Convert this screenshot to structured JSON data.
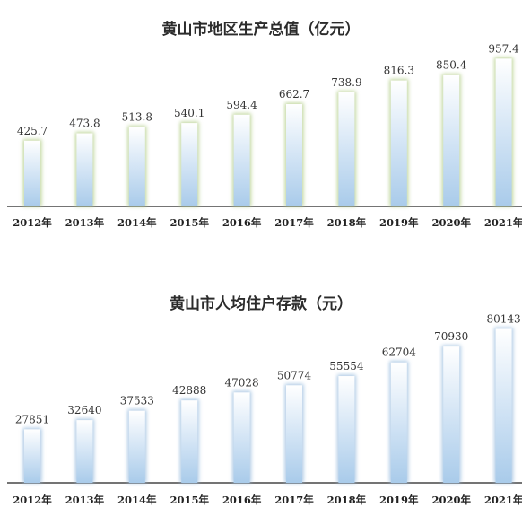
{
  "chart_data": [
    {
      "type": "bar",
      "title": "黄山市地区生产总值（亿元）",
      "categories": [
        "2012年",
        "2013年",
        "2014年",
        "2015年",
        "2016年",
        "2017年",
        "2018年",
        "2019年",
        "2020年",
        "2021年"
      ],
      "values": [
        425.7,
        473.8,
        513.8,
        540.1,
        594.4,
        662.7,
        738.9,
        816.3,
        850.4,
        957.4
      ],
      "value_labels": [
        "425.7",
        "473.8",
        "513.8",
        "540.1",
        "594.4",
        "662.7",
        "738.9",
        "816.3",
        "850.4",
        "957.4"
      ],
      "ylim": [
        0,
        1000
      ],
      "grid": false,
      "colors": {
        "bar_top": "#ffffff",
        "bar_bottom": "#a9cbea",
        "glow": "#b7d08f",
        "axis": "#222222"
      }
    },
    {
      "type": "bar",
      "title": "黄山市人均住户存款（元）",
      "categories": [
        "2012年",
        "2013年",
        "2014年",
        "2015年",
        "2016年",
        "2017年",
        "2018年",
        "2019年",
        "2020年",
        "2021年"
      ],
      "values": [
        27851,
        32640,
        37533,
        42888,
        47028,
        50774,
        55554,
        62704,
        70930,
        80143
      ],
      "value_labels": [
        "27851",
        "32640",
        "37533",
        "42888",
        "47028",
        "50774",
        "55554",
        "62704",
        "70930",
        "80143"
      ],
      "ylim": [
        0,
        85000
      ],
      "grid": false,
      "colors": {
        "bar_top": "#ffffff",
        "bar_bottom": "#a9cbea",
        "glow": "#9fc0e0",
        "axis": "#222222"
      }
    }
  ]
}
